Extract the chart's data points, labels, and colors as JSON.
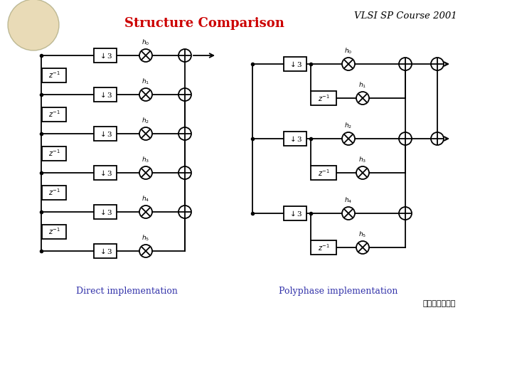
{
  "title": "Structure Comparison",
  "course": "VLSI SP Course 2001",
  "direct_label": "Direct implementation",
  "polyphase_label": "Polyphase implementation",
  "bg_color": "#ffffff",
  "title_color": "#cc0000",
  "label_color": "#3333aa",
  "course_color": "#000000"
}
